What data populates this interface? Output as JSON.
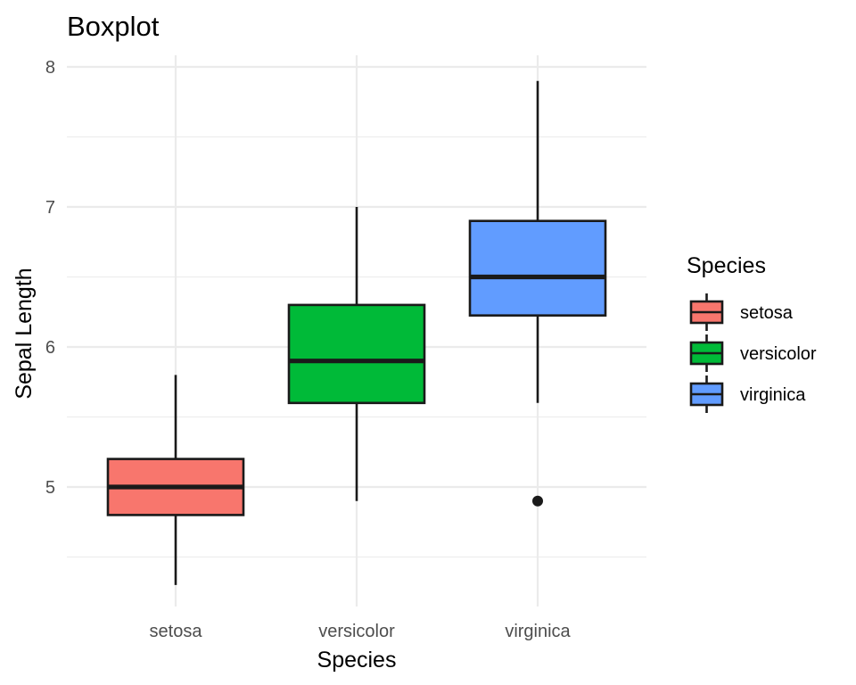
{
  "chart_data": {
    "type": "boxplot",
    "title": "Boxplot",
    "xlabel": "Species",
    "ylabel": "Sepal Length",
    "categories": [
      "setosa",
      "versicolor",
      "virginica"
    ],
    "ylim": [
      4.22,
      8.05
    ],
    "y_ticks": [
      5,
      6,
      7,
      8
    ],
    "y_minor_ticks": [
      4.5,
      5.5,
      6.5,
      7.5
    ],
    "grid": true,
    "legend": {
      "title": "Species",
      "position": "right"
    },
    "series": [
      {
        "name": "setosa",
        "color": "#F8766D",
        "min": 4.3,
        "q1": 4.8,
        "median": 5.0,
        "q3": 5.2,
        "max": 5.8,
        "outliers": []
      },
      {
        "name": "versicolor",
        "color": "#00BA38",
        "min": 4.9,
        "q1": 5.6,
        "median": 5.9,
        "q3": 6.3,
        "max": 7.0,
        "outliers": []
      },
      {
        "name": "virginica",
        "color": "#619CFF",
        "min": 5.6,
        "q1": 6.225,
        "median": 6.5,
        "q3": 6.9,
        "max": 7.9,
        "outliers": [
          4.9
        ]
      }
    ]
  }
}
